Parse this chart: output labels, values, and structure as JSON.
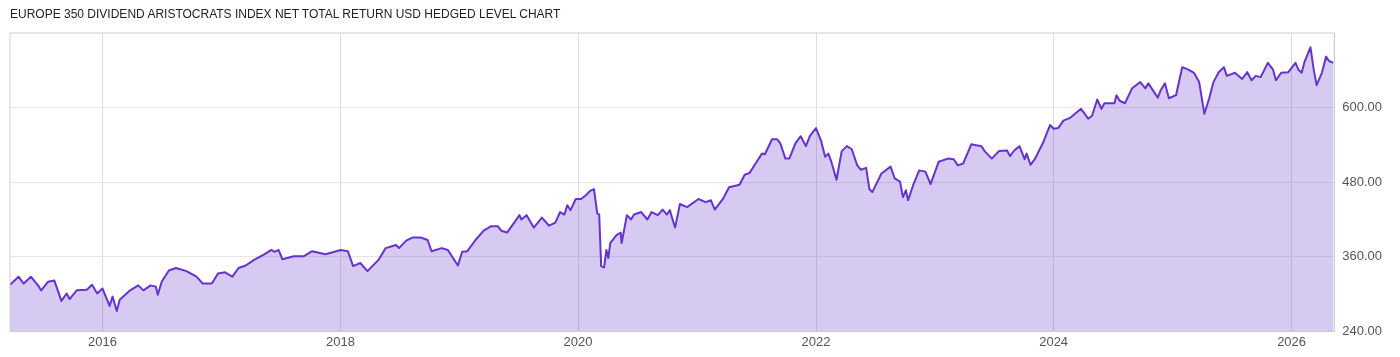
{
  "chart_data": {
    "type": "area",
    "title": "EUROPE 350 DIVIDEND ARISTOCRATS INDEX NET TOTAL RETURN USD HEDGED LEVEL CHART",
    "x": [
      "2015-03-23",
      "2015-04-18",
      "2015-05-04",
      "2015-05-26",
      "2015-06-17",
      "2015-06-27",
      "2015-07-18",
      "2015-08-06",
      "2015-08-28",
      "2015-09-13",
      "2015-09-22",
      "2015-10-14",
      "2015-11-14",
      "2015-11-30",
      "2015-12-16",
      "2016-01-01",
      "2016-01-23",
      "2016-02-01",
      "2016-02-14",
      "2016-02-23",
      "2016-03-26",
      "2016-04-20",
      "2016-05-06",
      "2016-05-28",
      "2016-06-13",
      "2016-06-19",
      "2016-07-01",
      "2016-07-23",
      "2016-08-14",
      "2016-09-15",
      "2016-10-16",
      "2016-11-04",
      "2016-12-02",
      "2016-12-21",
      "2017-01-12",
      "2017-02-03",
      "2017-02-22",
      "2017-03-16",
      "2017-04-11",
      "2017-05-12",
      "2017-06-03",
      "2017-06-13",
      "2017-06-25",
      "2017-07-07",
      "2017-08-11",
      "2017-09-11",
      "2017-10-06",
      "2017-11-16",
      "2018-01-02",
      "2018-01-24",
      "2018-02-09",
      "2018-03-03",
      "2018-03-25",
      "2018-04-28",
      "2018-05-20",
      "2018-06-21",
      "2018-06-30",
      "2018-07-22",
      "2018-08-10",
      "2018-09-04",
      "2018-09-26",
      "2018-10-08",
      "2018-11-08",
      "2018-11-27",
      "2018-12-28",
      "2019-01-10",
      "2019-01-26",
      "2019-02-20",
      "2019-03-17",
      "2019-04-08",
      "2019-04-30",
      "2019-05-10",
      "2019-05-28",
      "2019-06-19",
      "2019-07-05",
      "2019-07-11",
      "2019-07-27",
      "2019-08-18",
      "2019-09-12",
      "2019-10-04",
      "2019-10-23",
      "2019-11-07",
      "2019-11-20",
      "2019-11-29",
      "2019-12-09",
      "2019-12-25",
      "2020-01-10",
      "2020-01-25",
      "2020-02-07",
      "2020-02-19",
      "2020-02-29",
      "2020-03-06",
      "2020-03-12",
      "2020-03-21",
      "2020-03-28",
      "2020-04-03",
      "2020-04-09",
      "2020-04-28",
      "2020-05-11",
      "2020-05-14",
      "2020-05-30",
      "2020-06-12",
      "2020-06-21",
      "2020-07-13",
      "2020-08-01",
      "2020-08-14",
      "2020-09-02",
      "2020-09-17",
      "2020-09-30",
      "2020-10-09",
      "2020-10-25",
      "2020-11-09",
      "2020-12-01",
      "2021-01-05",
      "2021-01-27",
      "2021-02-12",
      "2021-02-24",
      "2021-03-21",
      "2021-04-09",
      "2021-05-11",
      "2021-05-27",
      "2021-06-11",
      "2021-06-27",
      "2021-07-19",
      "2021-07-28",
      "2021-08-19",
      "2021-09-04",
      "2021-09-13",
      "2021-09-29",
      "2021-10-11",
      "2021-10-30",
      "2021-11-15",
      "2021-12-01",
      "2021-12-13",
      "2022-01-01",
      "2022-01-17",
      "2022-01-29",
      "2022-02-08",
      "2022-02-17",
      "2022-03-05",
      "2022-03-21",
      "2022-04-06",
      "2022-04-21",
      "2022-05-07",
      "2022-05-19",
      "2022-06-04",
      "2022-06-14",
      "2022-06-23",
      "2022-07-05",
      "2022-07-21",
      "2022-08-18",
      "2022-08-31",
      "2022-09-16",
      "2022-09-25",
      "2022-10-04",
      "2022-10-11",
      "2022-10-27",
      "2022-11-14",
      "2022-12-03",
      "2022-12-19",
      "2023-01-13",
      "2023-02-10",
      "2023-02-28",
      "2023-03-13",
      "2023-03-29",
      "2023-04-23",
      "2023-05-24",
      "2023-06-03",
      "2023-06-25",
      "2023-07-17",
      "2023-08-11",
      "2023-08-20",
      "2023-09-02",
      "2023-09-18",
      "2023-10-04",
      "2023-10-10",
      "2023-10-22",
      "2023-11-04",
      "2023-11-29",
      "2023-12-21",
      "2024-01-01",
      "2024-01-15",
      "2024-01-31",
      "2024-02-22",
      "2024-03-25",
      "2024-04-03",
      "2024-04-16",
      "2024-04-28",
      "2024-05-14",
      "2024-05-27",
      "2024-06-05",
      "2024-07-06",
      "2024-07-12",
      "2024-07-22",
      "2024-08-07",
      "2024-08-29",
      "2024-09-23",
      "2024-10-09",
      "2024-10-18",
      "2024-11-16",
      "2024-11-25",
      "2024-12-08",
      "2024-12-20",
      "2025-01-11",
      "2025-01-30",
      "2025-02-18",
      "2025-03-07",
      "2025-03-23",
      "2025-04-08",
      "2025-04-23",
      "2025-05-06",
      "2025-05-22",
      "2025-06-07",
      "2025-06-16",
      "2025-07-11",
      "2025-08-02",
      "2025-08-18",
      "2025-08-31",
      "2025-09-13",
      "2025-09-28",
      "2025-10-20",
      "2025-11-05",
      "2025-11-14",
      "2025-11-30",
      "2025-12-22",
      "2026-01-13",
      "2026-01-22",
      "2026-02-01",
      "2026-02-10",
      "2026-02-28",
      "2026-03-10",
      "2026-03-19",
      "2026-04-04",
      "2026-04-17",
      "2026-04-26",
      "2026-05-09"
    ],
    "series": [
      {
        "color": "#6633cc",
        "values": [
          315,
          328,
          317,
          328,
          314,
          306,
          320,
          322,
          289,
          301,
          292,
          306,
          307,
          315,
          301,
          309,
          281,
          296,
          273,
          291,
          306,
          314,
          306,
          314,
          312,
          299,
          320,
          338,
          342,
          337,
          328,
          317,
          317,
          333,
          335,
          328,
          342,
          346,
          355,
          364,
          371,
          368,
          371,
          356,
          361,
          361,
          369,
          364,
          371,
          369,
          345,
          350,
          337,
          355,
          374,
          379,
          374,
          386,
          391,
          391,
          387,
          369,
          374,
          371,
          346,
          368,
          369,
          387,
          402,
          409,
          409,
          402,
          399,
          415,
          427,
          420,
          427,
          407,
          423,
          410,
          415,
          432,
          428,
          443,
          435,
          453,
          453,
          459,
          466,
          469,
          430,
          428,
          345,
          343,
          371,
          358,
          382,
          395,
          399,
          382,
          427,
          420,
          428,
          432,
          420,
          432,
          427,
          436,
          428,
          435,
          407,
          445,
          440,
          453,
          448,
          451,
          436,
          453,
          472,
          476,
          492,
          495,
          508,
          526,
          525,
          549,
          549,
          543,
          518,
          518,
          543,
          554,
          538,
          554,
          567,
          546,
          521,
          526,
          513,
          484,
          530,
          538,
          533,
          508,
          500,
          503,
          469,
          464,
          477,
          494,
          505,
          486,
          481,
          456,
          467,
          451,
          476,
          499,
          497,
          477,
          513,
          518,
          517,
          507,
          510,
          541,
          538,
          530,
          518,
          530,
          531,
          522,
          531,
          538,
          517,
          526,
          508,
          517,
          543,
          572,
          566,
          567,
          579,
          584,
          598,
          592,
          582,
          587,
          613,
          598,
          607,
          607,
          620,
          611,
          607,
          631,
          641,
          631,
          639,
          616,
          628,
          639,
          615,
          620,
          665,
          661,
          656,
          641,
          590,
          615,
          641,
          657,
          665,
          651,
          656,
          646,
          657,
          644,
          651,
          649,
          672,
          661,
          644,
          656,
          657,
          672,
          661,
          656,
          674,
          697,
          661,
          636,
          656,
          682,
          675,
          672
        ]
      }
    ],
    "xlim": [
      "2015-03-23",
      "2026-05-12"
    ],
    "xticks": [
      {
        "value": "2016",
        "label": "2016"
      },
      {
        "value": "2018",
        "label": "2018"
      },
      {
        "value": "2020",
        "label": "2020"
      },
      {
        "value": "2022",
        "label": "2022"
      },
      {
        "value": "2024",
        "label": "2024"
      },
      {
        "value": "2026",
        "label": "2026"
      }
    ],
    "ylim": [
      240,
      720
    ],
    "yticks": [
      {
        "value": 240,
        "label": "240.00"
      },
      {
        "value": 360,
        "label": "360.00"
      },
      {
        "value": 480,
        "label": "480.00"
      },
      {
        "value": 600,
        "label": "600.00"
      }
    ],
    "grid": true,
    "marker": "none",
    "line_style": "solid"
  }
}
